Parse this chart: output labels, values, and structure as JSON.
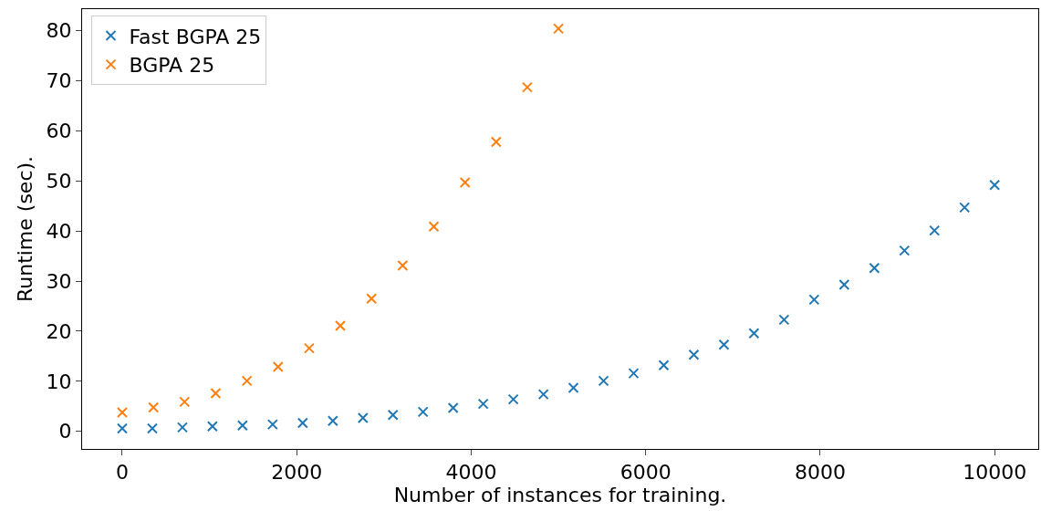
{
  "chart_data": {
    "type": "scatter",
    "xlabel": "Number of instances for training.",
    "ylabel": "Runtime (sec).",
    "marker": "cross",
    "legend": "top left",
    "grid": false,
    "xlim": [
      -460,
      10500
    ],
    "xticks": [
      0,
      2000,
      4000,
      6000,
      8000,
      10000
    ],
    "ylim": [
      -3.5,
      84.3
    ],
    "yticks": [
      0,
      10,
      20,
      30,
      40,
      50,
      60,
      70,
      80
    ],
    "series": [
      {
        "name": "Fast BGPA 25",
        "color": "#1f77b4",
        "x": [
          0,
          345,
          690,
          1034,
          1379,
          1724,
          2069,
          2414,
          2759,
          3103,
          3448,
          3793,
          4138,
          4483,
          4828,
          5172,
          5517,
          5862,
          6207,
          6552,
          6897,
          7241,
          7586,
          7931,
          8276,
          8621,
          8966,
          9310,
          9655,
          10000
        ],
        "values": [
          0.6,
          0.6,
          0.8,
          1.0,
          1.2,
          1.4,
          1.7,
          2.1,
          2.7,
          3.3,
          3.9,
          4.7,
          5.5,
          6.4,
          7.4,
          8.7,
          10.1,
          11.6,
          13.2,
          15.3,
          17.3,
          19.6,
          22.3,
          26.3,
          29.3,
          32.6,
          36.1,
          40.1,
          44.7,
          49.2
        ]
      },
      {
        "name": "BGPA 25",
        "color": "#ff7f0e",
        "x": [
          0,
          357,
          714,
          1071,
          1429,
          1786,
          2143,
          2500,
          2857,
          3214,
          3571,
          3929,
          4286,
          4643,
          5000
        ],
        "values": [
          3.8,
          4.8,
          5.9,
          7.6,
          10.1,
          12.9,
          16.6,
          21.1,
          26.5,
          33.1,
          40.9,
          49.7,
          57.8,
          68.7,
          80.4
        ]
      }
    ]
  }
}
